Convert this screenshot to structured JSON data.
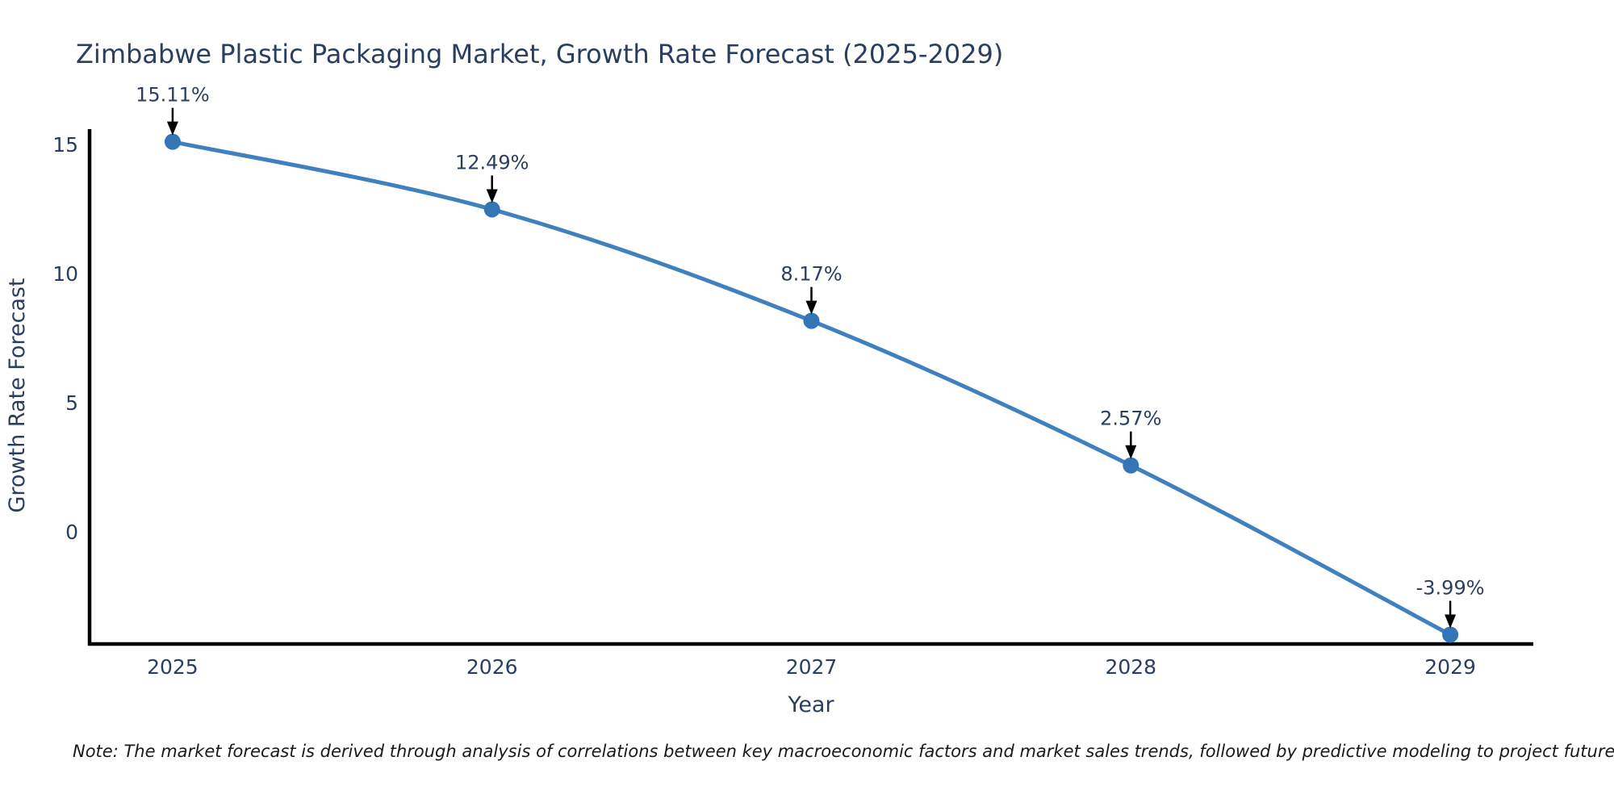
{
  "chart_data": {
    "type": "line",
    "title": "Zimbabwe Plastic Packaging Market, Growth Rate Forecast (2025-2029)",
    "xlabel": "Year",
    "ylabel": "Growth Rate Forecast",
    "x": [
      2025,
      2026,
      2027,
      2028,
      2029
    ],
    "series": [
      {
        "name": "Growth Rate Forecast",
        "values": [
          15.11,
          12.49,
          8.17,
          2.57,
          -3.99
        ]
      }
    ],
    "annotations": [
      "15.11%",
      "12.49%",
      "8.17%",
      "2.57%",
      "-3.99%"
    ],
    "yticks": [
      0,
      5,
      10,
      15
    ],
    "ylim": [
      -4.35,
      15.6
    ],
    "xlim": [
      2024.74,
      2029.26
    ],
    "grid": false,
    "legend": "none",
    "line_color": "#3f81be",
    "marker_color": "#3375b5",
    "axis_color": "#000000",
    "text_color": "#2a3f5f",
    "annotation_arrow_color": "#000000"
  },
  "note": "Note: The market forecast is derived through analysis of correlations between key macroeconomic factors and market sales trends, followed by predictive modeling to project future sales"
}
